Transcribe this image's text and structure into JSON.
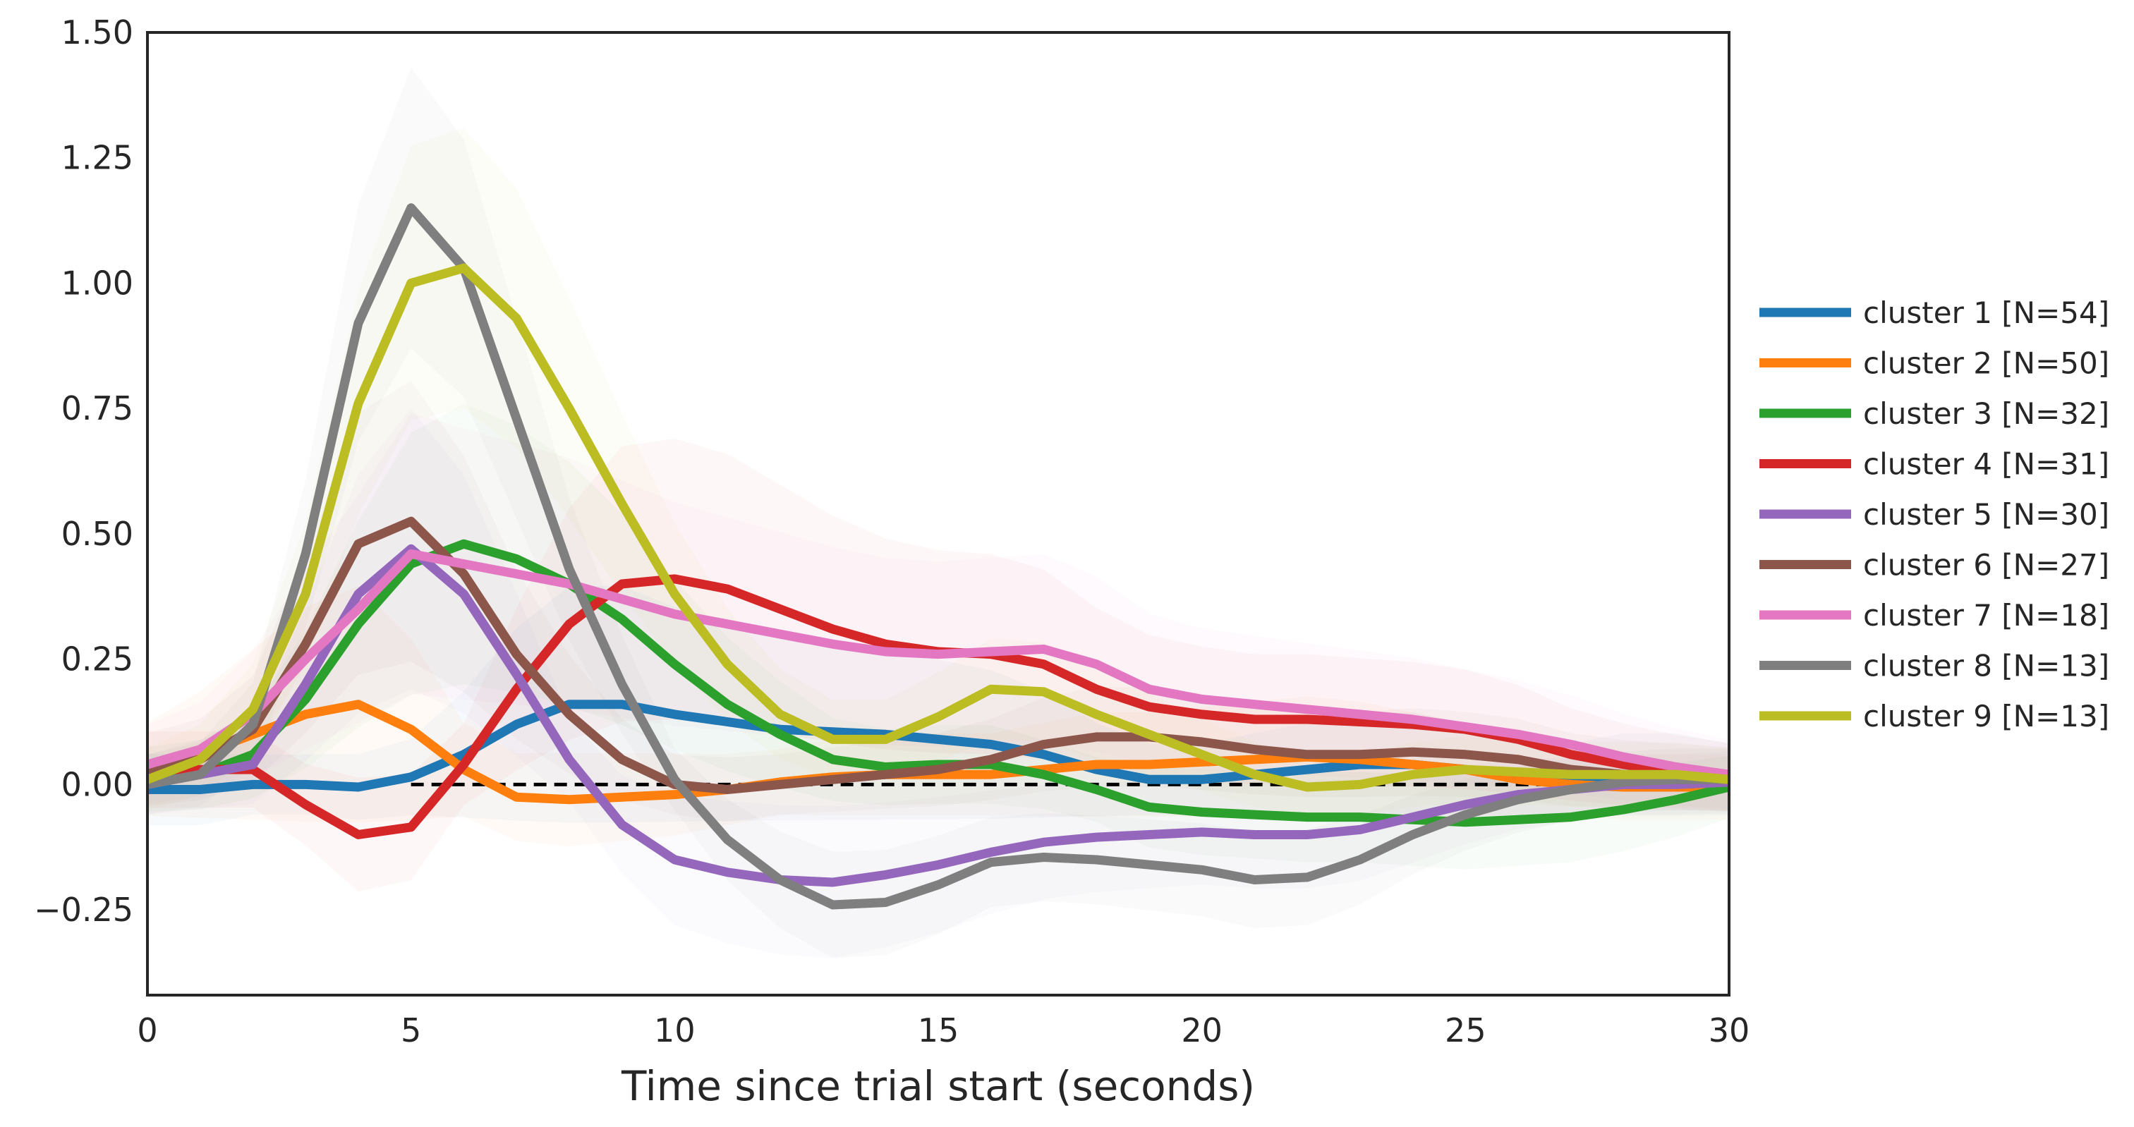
{
  "chart_data": {
    "type": "line",
    "title": "",
    "xlabel": "Time since trial start (seconds)",
    "ylabel": "",
    "xlim": [
      0,
      30
    ],
    "ylim": [
      -0.42,
      1.5
    ],
    "grid": false,
    "legend_placement": "right",
    "x_ticks": [
      0,
      5,
      10,
      15,
      20,
      25,
      30
    ],
    "x_tick_labels": [
      "0",
      "5",
      "10",
      "15",
      "20",
      "25",
      "30"
    ],
    "y_ticks": [
      -0.25,
      0,
      0.25,
      0.5,
      0.75,
      1.0,
      1.25,
      1.5
    ],
    "y_tick_labels": [
      "−0.25",
      "0.00",
      "0.25",
      "0.50",
      "0.75",
      "1.00",
      "1.25",
      "1.50"
    ],
    "baseline": {
      "y": 0,
      "x_from": 5,
      "x_to": 30,
      "style": "dashed",
      "color": "#000000"
    },
    "x": [
      0,
      1,
      2,
      3,
      4,
      5,
      6,
      7,
      8,
      9,
      10,
      11,
      12,
      13,
      14,
      15,
      16,
      17,
      18,
      19,
      20,
      21,
      22,
      23,
      24,
      25,
      26,
      27,
      28,
      29,
      30
    ],
    "series": [
      {
        "name": "cluster 1 [N=54]",
        "color": "#1f77b4",
        "values": [
          -0.01,
          -0.01,
          0.0,
          0.0,
          -0.005,
          0.015,
          0.06,
          0.12,
          0.16,
          0.16,
          0.14,
          0.125,
          0.11,
          0.105,
          0.1,
          0.09,
          0.08,
          0.06,
          0.03,
          0.01,
          0.01,
          0.02,
          0.03,
          0.04,
          0.04,
          0.03,
          0.015,
          0.01,
          0.02,
          0.02,
          0.01
        ]
      },
      {
        "name": "cluster 2 [N=50]",
        "color": "#ff7f0e",
        "values": [
          0.03,
          0.06,
          0.1,
          0.14,
          0.16,
          0.11,
          0.03,
          -0.025,
          -0.03,
          -0.025,
          -0.02,
          -0.01,
          0.005,
          0.015,
          0.02,
          0.02,
          0.02,
          0.03,
          0.04,
          0.04,
          0.045,
          0.05,
          0.055,
          0.05,
          0.04,
          0.03,
          0.01,
          0.0,
          -0.005,
          -0.005,
          -0.005
        ]
      },
      {
        "name": "cluster 3 [N=32]",
        "color": "#2ca02c",
        "values": [
          0.01,
          0.02,
          0.06,
          0.17,
          0.32,
          0.44,
          0.48,
          0.45,
          0.4,
          0.33,
          0.24,
          0.16,
          0.1,
          0.05,
          0.035,
          0.04,
          0.04,
          0.02,
          -0.01,
          -0.045,
          -0.055,
          -0.06,
          -0.065,
          -0.065,
          -0.07,
          -0.075,
          -0.07,
          -0.065,
          -0.05,
          -0.03,
          -0.005
        ]
      },
      {
        "name": "cluster 4 [N=31]",
        "color": "#d62728",
        "values": [
          0.03,
          0.03,
          0.03,
          -0.04,
          -0.1,
          -0.085,
          0.04,
          0.19,
          0.32,
          0.4,
          0.41,
          0.39,
          0.35,
          0.31,
          0.28,
          0.265,
          0.26,
          0.24,
          0.19,
          0.155,
          0.14,
          0.13,
          0.13,
          0.125,
          0.12,
          0.11,
          0.09,
          0.06,
          0.04,
          0.025,
          0.015
        ]
      },
      {
        "name": "cluster 5 [N=30]",
        "color": "#9467bd",
        "values": [
          0.0,
          0.02,
          0.04,
          0.2,
          0.38,
          0.47,
          0.38,
          0.22,
          0.05,
          -0.08,
          -0.15,
          -0.175,
          -0.19,
          -0.195,
          -0.18,
          -0.16,
          -0.135,
          -0.115,
          -0.105,
          -0.1,
          -0.095,
          -0.1,
          -0.1,
          -0.09,
          -0.065,
          -0.04,
          -0.02,
          -0.01,
          0.0,
          0.0,
          0.005
        ]
      },
      {
        "name": "cluster 6 [N=27]",
        "color": "#8c564b",
        "values": [
          0.03,
          0.05,
          0.11,
          0.28,
          0.48,
          0.525,
          0.42,
          0.26,
          0.14,
          0.05,
          0.0,
          -0.01,
          0.0,
          0.01,
          0.02,
          0.03,
          0.05,
          0.08,
          0.095,
          0.095,
          0.085,
          0.07,
          0.06,
          0.06,
          0.065,
          0.06,
          0.05,
          0.03,
          0.02,
          0.015,
          0.01
        ]
      },
      {
        "name": "cluster 7 [N=18]",
        "color": "#e377c2",
        "values": [
          0.04,
          0.07,
          0.14,
          0.25,
          0.35,
          0.46,
          0.44,
          0.42,
          0.4,
          0.37,
          0.34,
          0.32,
          0.3,
          0.28,
          0.265,
          0.26,
          0.265,
          0.27,
          0.24,
          0.19,
          0.17,
          0.16,
          0.15,
          0.14,
          0.13,
          0.115,
          0.1,
          0.08,
          0.055,
          0.035,
          0.02
        ]
      },
      {
        "name": "cluster 8 [N=13]",
        "color": "#7f7f7f",
        "values": [
          0.0,
          0.02,
          0.12,
          0.46,
          0.92,
          1.15,
          1.03,
          0.73,
          0.43,
          0.2,
          0.01,
          -0.11,
          -0.19,
          -0.24,
          -0.235,
          -0.2,
          -0.155,
          -0.145,
          -0.15,
          -0.16,
          -0.17,
          -0.19,
          -0.185,
          -0.15,
          -0.1,
          -0.06,
          -0.03,
          -0.01,
          0.005,
          0.01,
          0.01
        ]
      },
      {
        "name": "cluster 9 [N=13]",
        "color": "#bcbd22",
        "values": [
          0.01,
          0.05,
          0.15,
          0.38,
          0.76,
          1.0,
          1.03,
          0.93,
          0.75,
          0.56,
          0.38,
          0.24,
          0.14,
          0.09,
          0.09,
          0.135,
          0.19,
          0.185,
          0.14,
          0.1,
          0.06,
          0.02,
          -0.005,
          0.0,
          0.02,
          0.03,
          0.025,
          0.02,
          0.02,
          0.02,
          0.01
        ]
      }
    ]
  }
}
